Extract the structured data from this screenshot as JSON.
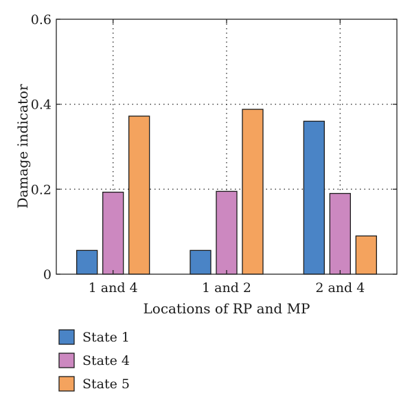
{
  "chart_data": {
    "type": "bar",
    "title": "",
    "xlabel": "Locations of RP and MP",
    "ylabel": "Damage indicator",
    "categories": [
      "1 and 4",
      "1 and 2",
      "2 and 4"
    ],
    "series": [
      {
        "name": "State 1",
        "values": [
          0.056,
          0.056,
          0.36
        ],
        "color": "#4a84c6"
      },
      {
        "name": "State 4",
        "values": [
          0.193,
          0.195,
          0.19
        ],
        "color": "#cc88c0"
      },
      {
        "name": "State 5",
        "values": [
          0.372,
          0.388,
          0.09
        ],
        "color": "#f4a35e"
      }
    ],
    "ylim": [
      0,
      0.6
    ],
    "yticks": [
      0,
      0.2,
      0.4,
      0.6
    ],
    "ytick_labels": [
      "0",
      "0.2",
      "0.4",
      "0.6"
    ],
    "grid": "dotted",
    "legend_position": "bottom-left"
  }
}
